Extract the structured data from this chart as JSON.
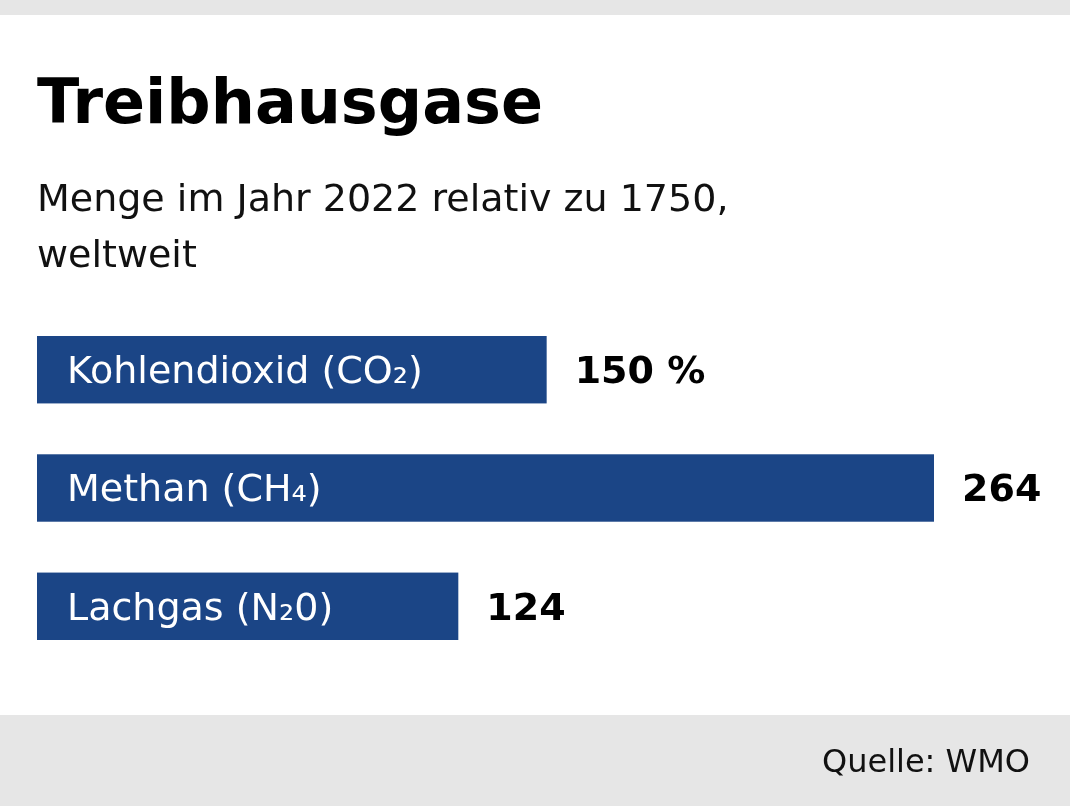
{
  "chart_data": {
    "type": "bar",
    "orientation": "horizontal",
    "title": "Treibhausgase",
    "subtitle": "Menge im Jahr 2022 relativ zu 1750, weltweit",
    "categories": [
      "Kohlendioxid (CO₂)",
      "Methan (CH₄)",
      "Lachgas (N₂0)"
    ],
    "values": [
      150,
      264,
      124
    ],
    "value_labels": [
      "150 %",
      "264",
      "124"
    ],
    "color": "#1b4586",
    "annotations": [
      "Quelle: WMO"
    ]
  }
}
